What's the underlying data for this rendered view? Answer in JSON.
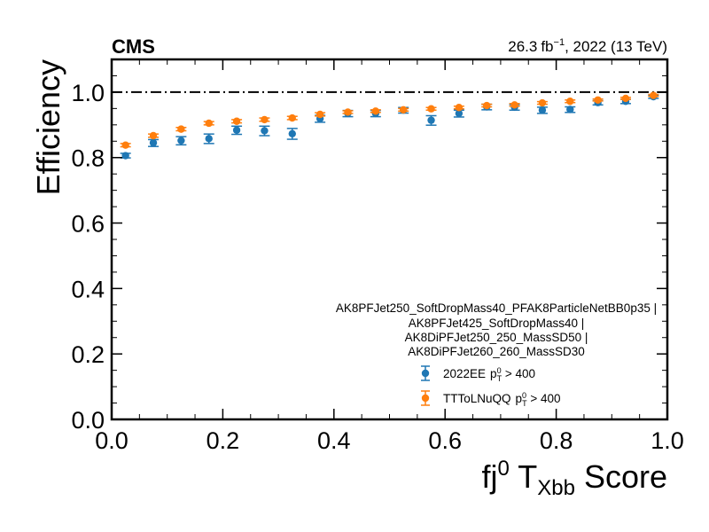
{
  "header": {
    "experiment": "CMS",
    "lumi": "26.3",
    "lumi_unit": "fb",
    "lumi_exp": "−1",
    "lumi_rest": ", 2022 (13 TeV)"
  },
  "chart_data": {
    "type": "scatter",
    "xlabel": {
      "base": "fj",
      "sup": "0",
      "mid": " T",
      "sub": "Xbb",
      "end": " Score"
    },
    "ylabel": "Efficiency",
    "xlim": [
      0.0,
      1.0
    ],
    "ylim": [
      0.0,
      1.1
    ],
    "x_ticks": [
      "0.0",
      "0.2",
      "0.4",
      "0.6",
      "0.8",
      "1.0"
    ],
    "y_ticks": [
      "0.0",
      "0.2",
      "0.4",
      "0.6",
      "0.8",
      "1.0"
    ],
    "reference_line": {
      "y": 1.0,
      "style": "dash-dot"
    },
    "grid": false,
    "legend": {
      "placement": "lower-right",
      "title_lines": [
        "AK8PFJet250_SoftDropMass40_PFAK8ParticleNetBB0p35 |",
        "AK8PFJet425_SoftDropMass40 |",
        "AK8DiPFJet250_250_MassSD50 |",
        "AK8DiPFJet260_260_MassSD30"
      ]
    },
    "x": [
      0.025,
      0.075,
      0.125,
      0.175,
      0.225,
      0.275,
      0.325,
      0.375,
      0.425,
      0.475,
      0.525,
      0.575,
      0.625,
      0.675,
      0.725,
      0.775,
      0.825,
      0.875,
      0.925,
      0.975
    ],
    "series": [
      {
        "name": "2022EE",
        "label_tail": " > 400",
        "color": "#1f77b4",
        "values": [
          0.806,
          0.845,
          0.852,
          0.858,
          0.884,
          0.882,
          0.873,
          0.919,
          0.935,
          0.935,
          0.945,
          0.914,
          0.935,
          0.955,
          0.954,
          0.945,
          0.947,
          0.968,
          0.972,
          0.986
        ],
        "err_up": [
          0.007,
          0.01,
          0.012,
          0.014,
          0.012,
          0.014,
          0.016,
          0.01,
          0.009,
          0.009,
          0.008,
          0.014,
          0.01,
          0.008,
          0.008,
          0.009,
          0.008,
          0.006,
          0.006,
          0.004
        ],
        "err_down": [
          0.007,
          0.011,
          0.013,
          0.015,
          0.013,
          0.015,
          0.017,
          0.011,
          0.01,
          0.01,
          0.009,
          0.015,
          0.011,
          0.009,
          0.009,
          0.01,
          0.009,
          0.007,
          0.007,
          0.005
        ]
      },
      {
        "name": "TTToLNuQQ",
        "label_tail": " > 400",
        "color": "#ff7f0e",
        "values": [
          0.838,
          0.867,
          0.887,
          0.905,
          0.911,
          0.916,
          0.921,
          0.932,
          0.939,
          0.942,
          0.946,
          0.949,
          0.953,
          0.959,
          0.961,
          0.967,
          0.972,
          0.976,
          0.981,
          0.99
        ],
        "err_up": [
          0.005,
          0.005,
          0.005,
          0.005,
          0.005,
          0.005,
          0.005,
          0.005,
          0.004,
          0.004,
          0.004,
          0.004,
          0.004,
          0.004,
          0.004,
          0.004,
          0.004,
          0.003,
          0.003,
          0.003
        ],
        "err_down": [
          0.005,
          0.005,
          0.005,
          0.005,
          0.005,
          0.005,
          0.005,
          0.005,
          0.004,
          0.004,
          0.004,
          0.004,
          0.004,
          0.004,
          0.004,
          0.004,
          0.004,
          0.003,
          0.003,
          0.003
        ]
      }
    ]
  }
}
